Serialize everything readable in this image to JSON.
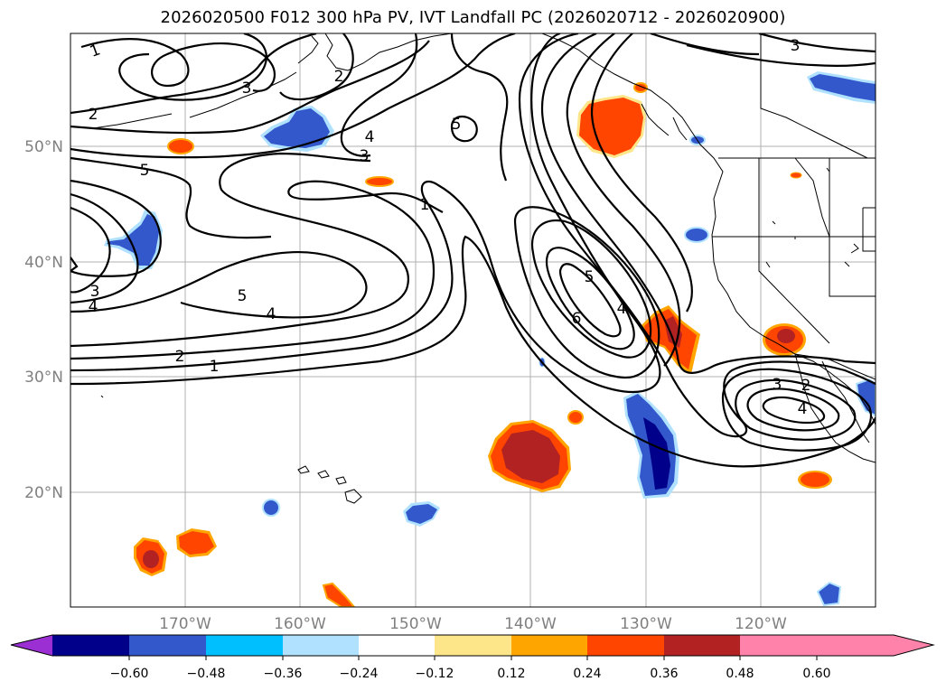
{
  "title": "2026020500 F012 300 hPa PV, IVT Landfall PC (2026020712 - 2026020900)",
  "map": {
    "lon_labels": [
      "170°W",
      "160°W",
      "150°W",
      "140°W",
      "130°W",
      "120°W"
    ],
    "lat_labels": [
      "50°N",
      "40°N",
      "30°N",
      "20°N"
    ]
  },
  "contour_labels": [
    {
      "text": "1"
    },
    {
      "text": "2"
    },
    {
      "text": "3"
    },
    {
      "text": "3"
    },
    {
      "text": "4"
    },
    {
      "text": "5"
    },
    {
      "text": "2"
    },
    {
      "text": "3"
    },
    {
      "text": "4"
    },
    {
      "text": "1"
    },
    {
      "text": "5"
    },
    {
      "text": "4"
    },
    {
      "text": "2"
    },
    {
      "text": "1"
    },
    {
      "text": "5"
    },
    {
      "text": "6"
    },
    {
      "text": "4"
    },
    {
      "text": "3"
    },
    {
      "text": "4"
    },
    {
      "text": "2"
    },
    {
      "text": "3"
    },
    {
      "text": "5"
    }
  ],
  "colorbar": {
    "ticks": [
      "−0.60",
      "−0.48",
      "−0.36",
      "−0.24",
      "−0.12",
      "0.12",
      "0.24",
      "0.36",
      "0.48",
      "0.60"
    ],
    "colors": [
      "#9c2fd4",
      "#00008b",
      "#3358cc",
      "#00bfff",
      "#b0e2ff",
      "#ffffff",
      "#fde68a",
      "#ffa500",
      "#ff4500",
      "#b22222",
      "#ff82ab"
    ]
  }
}
